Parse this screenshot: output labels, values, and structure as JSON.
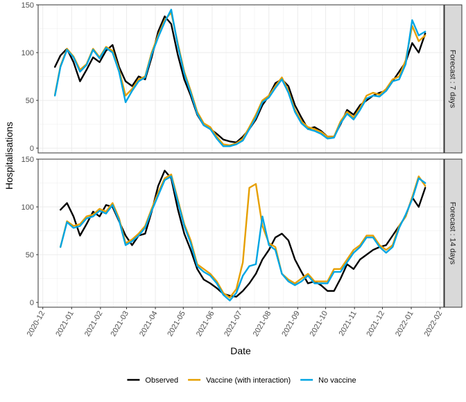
{
  "chart_data": {
    "type": "line",
    "xlabel": "Date",
    "ylabel": "Hospitalisations",
    "x_range": [
      "2020-11-26",
      "2022-02-05"
    ],
    "ylim": [
      -5,
      150
    ],
    "y_ticks": [
      0,
      50,
      100,
      150
    ],
    "x_ticks": [
      "2020-12",
      "2021-01",
      "2021-02",
      "2021-03",
      "2021-04",
      "2021-05",
      "2021-06",
      "2021-07",
      "2021-08",
      "2021-09",
      "2021-10",
      "2021-11",
      "2021-12",
      "2022-01",
      "2022-02"
    ],
    "grid": true,
    "legend_position": "bottom",
    "colors": {
      "Observed": "#000000",
      "Vaccine (with interaction)": "#E69F00",
      "No vaccine": "#00A5E3"
    },
    "panels": [
      {
        "strip": "Forecast : 7 days",
        "series": [
          {
            "name": "Observed",
            "x": [
              "2020-12-14",
              "2020-12-20",
              "2020-12-27",
              "2021-01-03",
              "2021-01-10",
              "2021-01-17",
              "2021-01-24",
              "2021-01-31",
              "2021-02-07",
              "2021-02-14",
              "2021-02-21",
              "2021-02-28",
              "2021-03-07",
              "2021-03-14",
              "2021-03-21",
              "2021-03-28",
              "2021-04-04",
              "2021-04-11",
              "2021-04-18",
              "2021-04-25",
              "2021-05-02",
              "2021-05-09",
              "2021-05-16",
              "2021-05-23",
              "2021-05-30",
              "2021-06-06",
              "2021-06-13",
              "2021-06-20",
              "2021-06-27",
              "2021-07-04",
              "2021-07-11",
              "2021-07-18",
              "2021-07-25",
              "2021-08-01",
              "2021-08-08",
              "2021-08-15",
              "2021-08-22",
              "2021-08-29",
              "2021-09-05",
              "2021-09-12",
              "2021-09-19",
              "2021-09-26",
              "2021-10-03",
              "2021-10-10",
              "2021-10-17",
              "2021-10-24",
              "2021-10-31",
              "2021-11-07",
              "2021-11-14",
              "2021-11-21",
              "2021-11-28",
              "2021-12-05",
              "2021-12-12",
              "2021-12-19",
              "2021-12-26",
              "2022-01-02",
              "2022-01-09",
              "2022-01-16"
            ],
            "values": [
              85,
              97,
              104,
              90,
              70,
              82,
              95,
              90,
              102,
              108,
              85,
              70,
              65,
              75,
              72,
              95,
              122,
              138,
              130,
              98,
              72,
              55,
              35,
              24,
              20,
              15,
              9,
              7,
              6,
              12,
              20,
              30,
              45,
              55,
              68,
              72,
              65,
              45,
              32,
              20,
              22,
              18,
              12,
              12,
              25,
              40,
              35,
              45,
              50,
              55,
              58,
              60,
              70,
              80,
              90,
              110,
              100,
              120
            ]
          },
          {
            "name": "Vaccine (with interaction)",
            "x": [
              "2020-12-14",
              "2020-12-20",
              "2020-12-27",
              "2021-01-03",
              "2021-01-10",
              "2021-01-17",
              "2021-01-24",
              "2021-01-31",
              "2021-02-07",
              "2021-02-14",
              "2021-02-21",
              "2021-02-28",
              "2021-03-07",
              "2021-03-14",
              "2021-03-21",
              "2021-03-28",
              "2021-04-04",
              "2021-04-11",
              "2021-04-18",
              "2021-04-25",
              "2021-05-02",
              "2021-05-09",
              "2021-05-16",
              "2021-05-23",
              "2021-05-30",
              "2021-06-06",
              "2021-06-13",
              "2021-06-20",
              "2021-06-27",
              "2021-07-04",
              "2021-07-11",
              "2021-07-18",
              "2021-07-25",
              "2021-08-01",
              "2021-08-08",
              "2021-08-15",
              "2021-08-22",
              "2021-08-29",
              "2021-09-05",
              "2021-09-12",
              "2021-09-19",
              "2021-09-26",
              "2021-10-03",
              "2021-10-10",
              "2021-10-17",
              "2021-10-24",
              "2021-10-31",
              "2021-11-07",
              "2021-11-14",
              "2021-11-21",
              "2021-11-28",
              "2021-12-05",
              "2021-12-12",
              "2021-12-19",
              "2021-12-26",
              "2022-01-02",
              "2022-01-09",
              "2022-01-16"
            ],
            "values": [
              56,
              86,
              104,
              96,
              82,
              88,
              104,
              95,
              106,
              102,
              82,
              55,
              62,
              72,
              75,
              100,
              118,
              134,
              142,
              110,
              80,
              60,
              38,
              26,
              22,
              12,
              4,
              3,
              5,
              10,
              22,
              35,
              50,
              55,
              65,
              74,
              60,
              40,
              28,
              22,
              20,
              17,
              12,
              12,
              28,
              38,
              32,
              42,
              55,
              58,
              56,
              62,
              72,
              75,
              92,
              128,
              112,
              118
            ]
          },
          {
            "name": "No vaccine",
            "x": [
              "2020-12-14",
              "2020-12-20",
              "2020-12-27",
              "2021-01-03",
              "2021-01-10",
              "2021-01-17",
              "2021-01-24",
              "2021-01-31",
              "2021-02-07",
              "2021-02-14",
              "2021-02-21",
              "2021-02-28",
              "2021-03-07",
              "2021-03-14",
              "2021-03-21",
              "2021-03-28",
              "2021-04-04",
              "2021-04-11",
              "2021-04-18",
              "2021-04-25",
              "2021-05-02",
              "2021-05-09",
              "2021-05-16",
              "2021-05-23",
              "2021-05-30",
              "2021-06-06",
              "2021-06-13",
              "2021-06-20",
              "2021-06-27",
              "2021-07-04",
              "2021-07-11",
              "2021-07-18",
              "2021-07-25",
              "2021-08-01",
              "2021-08-08",
              "2021-08-15",
              "2021-08-22",
              "2021-08-29",
              "2021-09-05",
              "2021-09-12",
              "2021-09-19",
              "2021-09-26",
              "2021-10-03",
              "2021-10-10",
              "2021-10-17",
              "2021-10-24",
              "2021-10-31",
              "2021-11-07",
              "2021-11-14",
              "2021-11-21",
              "2021-11-28",
              "2021-12-05",
              "2021-12-12",
              "2021-12-19",
              "2021-12-26",
              "2022-01-02",
              "2022-01-09",
              "2022-01-16"
            ],
            "values": [
              55,
              85,
              103,
              95,
              80,
              87,
              103,
              94,
              105,
              100,
              80,
              48,
              60,
              70,
              74,
              98,
              116,
              132,
              145,
              108,
              78,
              58,
              36,
              24,
              20,
              10,
              2,
              2,
              4,
              8,
              20,
              32,
              48,
              53,
              63,
              72,
              58,
              38,
              26,
              20,
              18,
              15,
              10,
              11,
              26,
              36,
              30,
              40,
              52,
              55,
              54,
              60,
              70,
              72,
              88,
              134,
              118,
              122
            ]
          }
        ]
      },
      {
        "strip": "Forecast : 14 days",
        "series": [
          {
            "name": "Observed",
            "x": [
              "2020-12-20",
              "2020-12-27",
              "2021-01-03",
              "2021-01-10",
              "2021-01-17",
              "2021-01-24",
              "2021-01-31",
              "2021-02-07",
              "2021-02-14",
              "2021-02-21",
              "2021-02-28",
              "2021-03-07",
              "2021-03-14",
              "2021-03-21",
              "2021-03-28",
              "2021-04-04",
              "2021-04-11",
              "2021-04-18",
              "2021-04-25",
              "2021-05-02",
              "2021-05-09",
              "2021-05-16",
              "2021-05-23",
              "2021-05-30",
              "2021-06-06",
              "2021-06-13",
              "2021-06-20",
              "2021-06-27",
              "2021-07-04",
              "2021-07-11",
              "2021-07-18",
              "2021-07-25",
              "2021-08-01",
              "2021-08-08",
              "2021-08-15",
              "2021-08-22",
              "2021-08-29",
              "2021-09-05",
              "2021-09-12",
              "2021-09-19",
              "2021-09-26",
              "2021-10-03",
              "2021-10-10",
              "2021-10-17",
              "2021-10-24",
              "2021-10-31",
              "2021-11-07",
              "2021-11-14",
              "2021-11-21",
              "2021-11-28",
              "2021-12-05",
              "2021-12-12",
              "2021-12-19",
              "2021-12-26",
              "2022-01-02",
              "2022-01-09",
              "2022-01-16"
            ],
            "values": [
              97,
              104,
              90,
              70,
              82,
              95,
              90,
              102,
              100,
              85,
              70,
              60,
              70,
              72,
              95,
              122,
              138,
              130,
              98,
              72,
              55,
              35,
              24,
              20,
              15,
              9,
              7,
              6,
              12,
              20,
              30,
              45,
              55,
              68,
              72,
              65,
              45,
              32,
              20,
              22,
              18,
              12,
              12,
              25,
              40,
              35,
              45,
              50,
              55,
              58,
              60,
              70,
              80,
              90,
              110,
              100,
              120
            ]
          },
          {
            "name": "Vaccine (with interaction)",
            "x": [
              "2020-12-20",
              "2020-12-27",
              "2021-01-03",
              "2021-01-10",
              "2021-01-17",
              "2021-01-24",
              "2021-01-31",
              "2021-02-07",
              "2021-02-14",
              "2021-02-21",
              "2021-02-28",
              "2021-03-07",
              "2021-03-14",
              "2021-03-21",
              "2021-03-28",
              "2021-04-04",
              "2021-04-11",
              "2021-04-18",
              "2021-04-25",
              "2021-05-02",
              "2021-05-09",
              "2021-05-16",
              "2021-05-23",
              "2021-05-30",
              "2021-06-06",
              "2021-06-13",
              "2021-06-20",
              "2021-06-27",
              "2021-07-04",
              "2021-07-11",
              "2021-07-18",
              "2021-07-25",
              "2021-08-01",
              "2021-08-08",
              "2021-08-15",
              "2021-08-22",
              "2021-08-29",
              "2021-09-05",
              "2021-09-12",
              "2021-09-19",
              "2021-09-26",
              "2021-10-03",
              "2021-10-10",
              "2021-10-17",
              "2021-10-24",
              "2021-10-31",
              "2021-11-07",
              "2021-11-14",
              "2021-11-21",
              "2021-11-28",
              "2021-12-05",
              "2021-12-12",
              "2021-12-19",
              "2021-12-26",
              "2022-01-02",
              "2022-01-09",
              "2022-01-16"
            ],
            "values": [
              58,
              85,
              80,
              82,
              90,
              92,
              98,
              95,
              104,
              88,
              62,
              66,
              72,
              80,
              98,
              115,
              130,
              134,
              108,
              82,
              65,
              40,
              35,
              30,
              22,
              10,
              5,
              14,
              42,
              120,
              124,
              80,
              62,
              58,
              30,
              24,
              20,
              25,
              30,
              22,
              22,
              22,
              35,
              35,
              45,
              55,
              60,
              70,
              70,
              60,
              55,
              60,
              80,
              90,
              110,
              132,
              122
            ]
          },
          {
            "name": "No vaccine",
            "x": [
              "2020-12-20",
              "2020-12-27",
              "2021-01-03",
              "2021-01-10",
              "2021-01-17",
              "2021-01-24",
              "2021-01-31",
              "2021-02-07",
              "2021-02-14",
              "2021-02-21",
              "2021-02-28",
              "2021-03-07",
              "2021-03-14",
              "2021-03-21",
              "2021-03-28",
              "2021-04-04",
              "2021-04-11",
              "2021-04-18",
              "2021-04-25",
              "2021-05-02",
              "2021-05-09",
              "2021-05-16",
              "2021-05-23",
              "2021-05-30",
              "2021-06-06",
              "2021-06-13",
              "2021-06-20",
              "2021-06-27",
              "2021-07-04",
              "2021-07-11",
              "2021-07-18",
              "2021-07-25",
              "2021-08-01",
              "2021-08-08",
              "2021-08-15",
              "2021-08-22",
              "2021-08-29",
              "2021-09-05",
              "2021-09-12",
              "2021-09-19",
              "2021-09-26",
              "2021-10-03",
              "2021-10-10",
              "2021-10-17",
              "2021-10-24",
              "2021-10-31",
              "2021-11-07",
              "2021-11-14",
              "2021-11-21",
              "2021-11-28",
              "2021-12-05",
              "2021-12-12",
              "2021-12-19",
              "2021-12-26",
              "2022-01-02",
              "2022-01-09",
              "2022-01-16"
            ],
            "values": [
              58,
              84,
              78,
              80,
              88,
              90,
              96,
              93,
              102,
              86,
              60,
              64,
              70,
              78,
              96,
              112,
              128,
              132,
              106,
              80,
              62,
              38,
              32,
              28,
              20,
              8,
              2,
              10,
              28,
              38,
              40,
              90,
              60,
              55,
              30,
              22,
              18,
              22,
              28,
              20,
              20,
              20,
              32,
              32,
              42,
              52,
              58,
              68,
              68,
              58,
              52,
              58,
              78,
              92,
              108,
              130,
              125
            ]
          }
        ]
      }
    ]
  }
}
